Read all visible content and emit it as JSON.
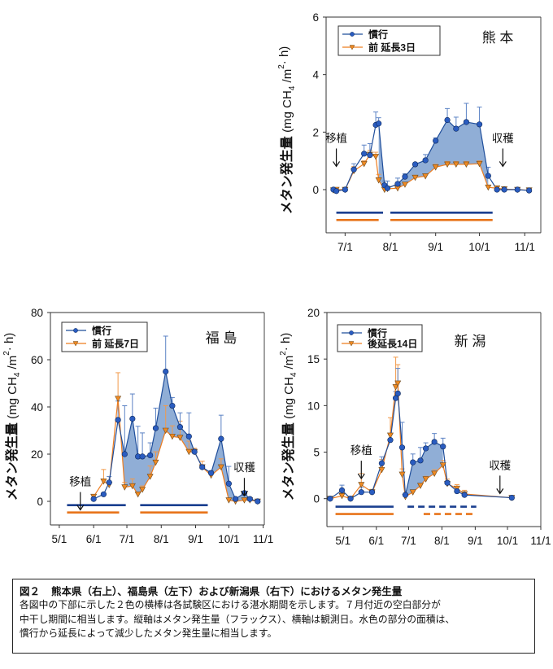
{
  "colors": {
    "conventional": "#1f4e9b",
    "conventional_marker": "#2a5cc0",
    "practice": "#ee7d1f",
    "practice_marker": "#f08a22",
    "fill": "#7da0cf",
    "errbar_conv": "#5b82c4",
    "errbar_prac": "#f29a4a",
    "bar_blue": "#1a3f8f",
    "bar_orange": "#e8741a"
  },
  "chart_data": [
    {
      "type": "line",
      "region": "熊 本",
      "ylabel_main": "メタン発生量",
      "ylabel_unit": "(mg CH4 /m2· h)",
      "ylim": [
        -1.5,
        6
      ],
      "yticks": [
        0,
        2,
        4,
        6
      ],
      "xticks": [
        "7/1",
        "8/1",
        "9/1",
        "10/1",
        "11/1"
      ],
      "xtick_dates": [
        "07-01",
        "08-01",
        "09-01",
        "10-01",
        "11-01"
      ],
      "xlim": [
        "06-18",
        "11-12"
      ],
      "legend": [
        "慣行",
        "前 延長3日"
      ],
      "annotations": [
        {
          "text": "移植",
          "date": "06-25",
          "value": 1.6
        },
        {
          "text": "収穫",
          "date": "10-17",
          "value": 1.6
        }
      ],
      "dates": [
        "06-23",
        "06-25",
        "07-01",
        "07-07",
        "07-14",
        "07-18",
        "07-22",
        "07-24",
        "07-28",
        "07-30",
        "08-06",
        "08-11",
        "08-18",
        "08-25",
        "09-01",
        "09-09",
        "09-15",
        "09-22",
        "10-01",
        "10-07",
        "10-13",
        "10-18",
        "10-27",
        "11-04"
      ],
      "series": [
        {
          "name": "慣行",
          "values": [
            0,
            -0.05,
            0,
            0.7,
            1.25,
            1.2,
            2.25,
            2.3,
            0.15,
            0.05,
            0.2,
            0.45,
            0.88,
            1.02,
            1.7,
            2.42,
            2.12,
            2.35,
            2.27,
            0.48,
            0,
            0,
            0,
            -0.03
          ],
          "err": [
            0.05,
            0.08,
            0.05,
            0.2,
            0.3,
            0.4,
            0.45,
            0.2,
            0.15,
            0.25,
            0.2,
            0.1,
            0.05,
            0.2,
            0.1,
            0.4,
            0.4,
            0.65,
            0.6,
            0.3,
            0,
            0,
            0,
            0
          ]
        },
        {
          "name": "前 延長3日",
          "values": [
            -0.02,
            0,
            0,
            0.65,
            0.9,
            1.22,
            1.15,
            0.33,
            0,
            0.03,
            0.05,
            0.18,
            0.42,
            0.47,
            0.78,
            0.88,
            0.88,
            0.88,
            0.9,
            0.08,
            0.05,
            0.02,
            0,
            -0.02
          ],
          "err": [
            0,
            0,
            0,
            0.15,
            0.1,
            0.15,
            0.15,
            0.2,
            0.05,
            0.05,
            0.05,
            0.05,
            0.08,
            0.08,
            0.1,
            0.1,
            0.1,
            0.1,
            0.1,
            0.05,
            0.05,
            0,
            0,
            0
          ]
        }
      ],
      "shade_ranges": [
        [
          "07-24",
          "07-30"
        ],
        [
          "08-04",
          "10-07"
        ]
      ],
      "periods": {
        "blue": [
          [
            "06-25",
            "07-27"
          ],
          [
            "08-01",
            "10-10"
          ]
        ],
        "orange": [
          [
            "06-25",
            "07-24"
          ],
          [
            "08-01",
            "10-10"
          ]
        ]
      }
    },
    {
      "type": "line",
      "region": "福 島",
      "ylabel_main": "メタン発生量",
      "ylabel_unit": "(mg CH4 /m2· h)",
      "ylim": [
        -10,
        80
      ],
      "yticks": [
        0,
        20,
        40,
        60,
        80
      ],
      "xticks": [
        "5/1",
        "6/1",
        "7/1",
        "8/1",
        "9/1",
        "10/1",
        "11/1"
      ],
      "xtick_dates": [
        "05-01",
        "06-01",
        "07-01",
        "08-01",
        "09-01",
        "10-01",
        "11-01"
      ],
      "xlim": [
        "04-23",
        "11-02"
      ],
      "legend": [
        "慣行",
        "前 延長7日"
      ],
      "annotations": [
        {
          "text": "移植",
          "date": "05-20",
          "value": 6
        },
        {
          "text": "収穫",
          "date": "10-15",
          "value": 12
        }
      ],
      "dates": [
        "06-01",
        "06-10",
        "06-15",
        "06-23",
        "06-29",
        "07-06",
        "07-11",
        "07-15",
        "07-22",
        "07-27",
        "08-05",
        "08-11",
        "08-18",
        "08-26",
        "08-31",
        "09-07",
        "09-15",
        "09-24",
        "10-01",
        "10-07",
        "10-15",
        "10-20",
        "10-27"
      ],
      "series": [
        {
          "name": "慣行",
          "values": [
            1,
            3,
            8,
            34.5,
            20,
            35,
            19,
            19,
            19.5,
            31,
            55,
            40.5,
            31.5,
            27.5,
            21,
            14.5,
            12,
            26.5,
            7.5,
            1,
            3.5,
            1,
            0
          ],
          "err": [
            0,
            0.5,
            2.5,
            8,
            20.5,
            10.5,
            12.8,
            10,
            5.3,
            8.5,
            15,
            3.5,
            6,
            10,
            1,
            1,
            1,
            10,
            7.3,
            0,
            0.5,
            0,
            0
          ]
        },
        {
          "name": "前 延長7日",
          "values": [
            2,
            8.5,
            7,
            43.5,
            6,
            6.5,
            3,
            5,
            10.5,
            16.5,
            30,
            27.5,
            27,
            21,
            21,
            14.5,
            11,
            14.5,
            0.5,
            0,
            0.5,
            0.5,
            0
          ],
          "err": [
            0,
            5,
            0,
            11,
            2,
            3,
            0.5,
            1.5,
            4.5,
            4.5,
            10.5,
            4.5,
            7,
            4.5,
            1.5,
            2.5,
            1,
            3.5,
            0,
            0,
            0,
            0,
            0
          ]
        }
      ],
      "shade_ranges": [
        [
          "06-26",
          "09-02"
        ],
        [
          "09-15",
          "10-27"
        ]
      ],
      "periods": {
        "blue": [
          [
            "05-08",
            "06-30"
          ],
          [
            "07-13",
            "09-12"
          ]
        ],
        "orange": [
          [
            "05-08",
            "06-24"
          ],
          [
            "07-13",
            "09-12"
          ]
        ]
      }
    },
    {
      "type": "line",
      "region": "新 潟",
      "ylabel_main": "メタン発生量",
      "ylabel_unit": "(mg CH4 /m2· h)",
      "ylim": [
        -3,
        20
      ],
      "yticks": [
        0,
        5,
        10,
        15,
        20
      ],
      "xticks": [
        "5/1",
        "6/1",
        "7/1",
        "8/1",
        "9/1",
        "10/1",
        "11/1"
      ],
      "xtick_dates": [
        "05-01",
        "06-01",
        "07-01",
        "08-01",
        "09-01",
        "10-01",
        "11-01"
      ],
      "xlim": [
        "04-16",
        "11-01"
      ],
      "legend": [
        "慣行",
        "後延長14日"
      ],
      "annotations": [
        {
          "text": "移植",
          "date": "05-18",
          "value": 4.6
        },
        {
          "text": "収穫",
          "date": "09-24",
          "value": 3
        }
      ],
      "dates": [
        "04-19",
        "04-30",
        "05-08",
        "05-18",
        "05-28",
        "06-06",
        "06-14",
        "06-19",
        "06-21",
        "06-25",
        "06-28",
        "07-05",
        "07-12",
        "07-17",
        "07-25",
        "08-02",
        "08-06",
        "08-15",
        "08-22",
        "10-05"
      ],
      "series": [
        {
          "name": "慣行",
          "values": [
            0,
            0.9,
            0,
            0.7,
            0.7,
            3.8,
            6.3,
            10.8,
            11.3,
            5.5,
            0.4,
            3.9,
            4.1,
            5.4,
            6.1,
            5.6,
            1.7,
            0.8,
            0.4,
            0.1
          ],
          "err": [
            0,
            0.55,
            0,
            0.5,
            0.2,
            0.7,
            0.6,
            0.7,
            2.7,
            2.7,
            0.2,
            0.9,
            1.4,
            0.6,
            0.9,
            0.9,
            0.2,
            0.2,
            0.1,
            0
          ]
        },
        {
          "name": "後延長14日",
          "values": [
            0,
            0.3,
            0,
            1.5,
            0.7,
            3.1,
            6.8,
            12,
            12.4,
            2.6,
            0.2,
            0.7,
            1.4,
            2.1,
            2.7,
            3.6,
            1.6,
            1.1,
            0.5,
            0.1
          ],
          "err": [
            0,
            0.3,
            0,
            1.2,
            0.3,
            1.1,
            1.9,
            3.2,
            2,
            0.6,
            0.1,
            0.1,
            0.2,
            0.3,
            0.4,
            0.5,
            0.5,
            0.4,
            0.4,
            0
          ]
        }
      ],
      "shade_ranges": [
        [
          "06-28",
          "08-02"
        ]
      ],
      "periods": {
        "blue": [
          [
            "04-24",
            "06-17",
            "solid"
          ],
          [
            "06-30",
            "09-02",
            "dashed"
          ]
        ],
        "orange": [
          [
            "04-24",
            "06-17",
            "solid"
          ],
          [
            "07-15",
            "09-02",
            "dashed"
          ]
        ]
      }
    }
  ],
  "caption": {
    "fig_label": "図２",
    "title": "熊本県（右上）、福島県（左下）および新潟県（右下）におけるメタン発生量",
    "lines": [
      "各図中の下部に示した２色の横棒は各試験区における湛水期間を示します。７月付近の空白部分が",
      "中干し期間に相当します。縦軸はメタン発生量（フラックス）、横軸は観測日。水色の部分の面積は、",
      "慣行から延長によって減少したメタン発生量に相当します。"
    ]
  }
}
